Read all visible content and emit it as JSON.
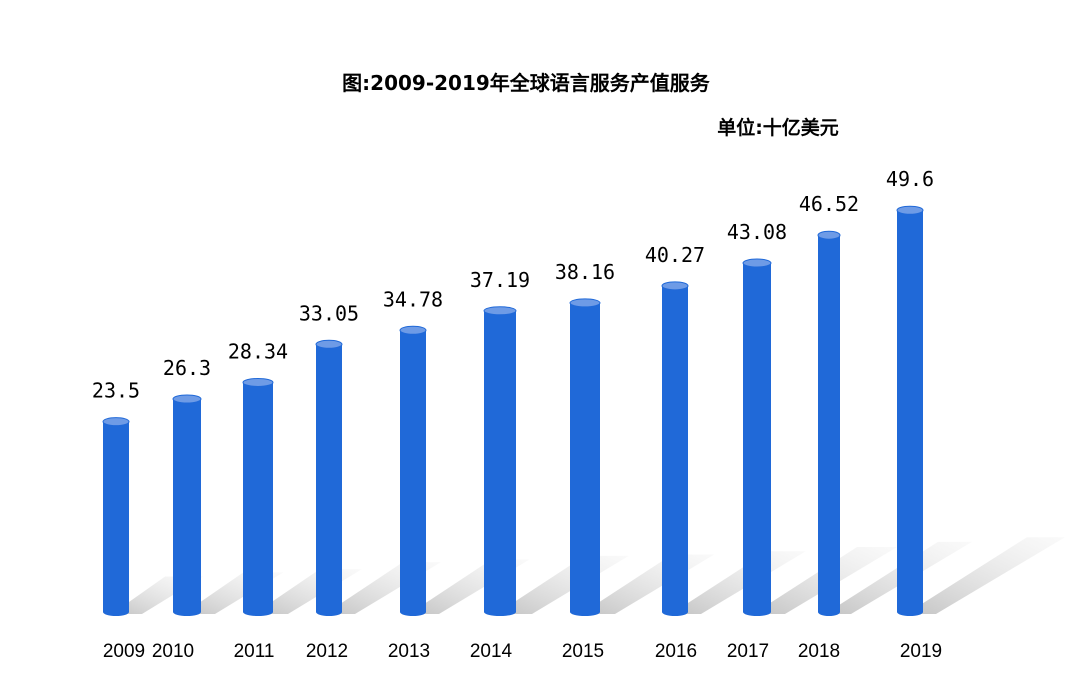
{
  "chart_data": {
    "type": "bar",
    "title": "图:2009-2019年全球语言服务产值服务",
    "unit_label": "单位:十亿美元",
    "categories": [
      "2009",
      "2010",
      "2011",
      "2012",
      "2013",
      "2014",
      "2015",
      "2016",
      "2017",
      "2018",
      "2019"
    ],
    "values": [
      23.5,
      26.3,
      28.34,
      33.05,
      34.78,
      37.19,
      38.16,
      40.27,
      43.08,
      46.52,
      49.6
    ],
    "value_labels": [
      "23.5",
      "26.3",
      "28.34",
      "33.05",
      "34.78",
      "37.19",
      "38.16",
      "40.27",
      "43.08",
      "46.52",
      "49.6"
    ],
    "bar_color": "#2069D8",
    "bar_top_color": "#6E9BE6",
    "shadow_color": "#C8C8C8",
    "grid": false,
    "legend": "none"
  }
}
